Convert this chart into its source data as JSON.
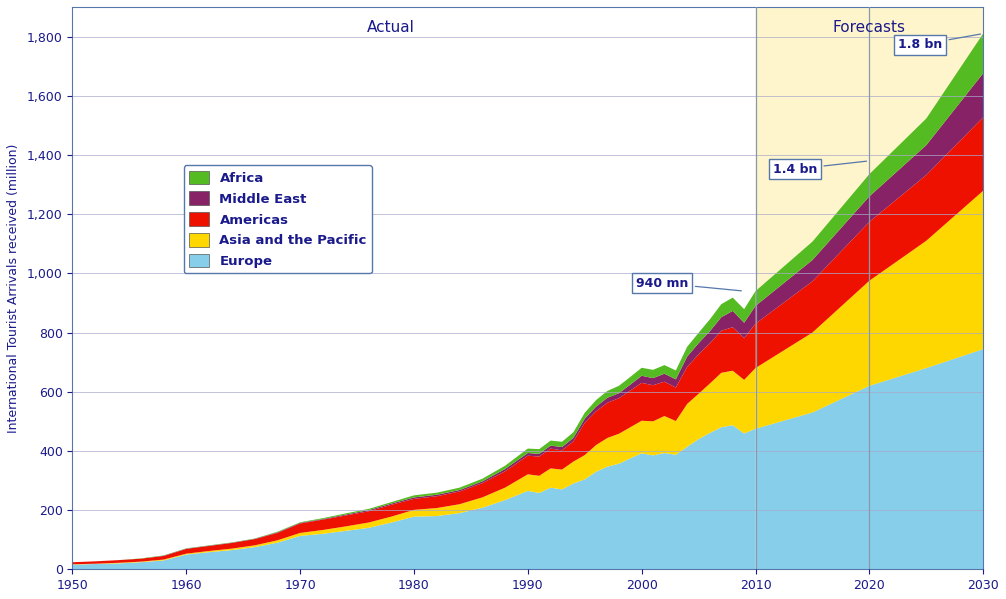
{
  "title_actual": "Actual",
  "title_forecasts": "Forecasts",
  "ylabel": "International Tourist Arrivals received (million)",
  "bg_forecast_color": "#FFF5CC",
  "colors": {
    "Europe": "#87CEEB",
    "Asia and the Pacific": "#FFD700",
    "Americas": "#EE1100",
    "Middle East": "#882266",
    "Africa": "#55BB22"
  },
  "annotation_940": "940 mn",
  "annotation_14": "1.4 bn",
  "annotation_18": "1.8 bn",
  "forecast_start": 2010,
  "vline_2020": 2020,
  "ylim": [
    0,
    1900
  ],
  "xlim": [
    1950,
    2030
  ],
  "yticks": [
    0,
    200,
    400,
    600,
    800,
    1000,
    1200,
    1400,
    1600,
    1800
  ],
  "xticks": [
    1950,
    1960,
    1970,
    1980,
    1990,
    2000,
    2010,
    2020,
    2030
  ],
  "actual_years": [
    1950,
    1952,
    1954,
    1956,
    1958,
    1960,
    1962,
    1964,
    1966,
    1968,
    1970,
    1972,
    1974,
    1976,
    1978,
    1980,
    1982,
    1984,
    1986,
    1988,
    1990,
    1991,
    1992,
    1993,
    1994,
    1995,
    1996,
    1997,
    1998,
    1999,
    2000,
    2001,
    2002,
    2003,
    2004,
    2005,
    2006,
    2007,
    2008,
    2009,
    2010
  ],
  "actual_europe": [
    16,
    18,
    20,
    24,
    30,
    50,
    58,
    65,
    75,
    90,
    113,
    120,
    130,
    140,
    158,
    178,
    180,
    190,
    208,
    234,
    265,
    258,
    276,
    270,
    290,
    304,
    330,
    347,
    357,
    375,
    392,
    385,
    393,
    387,
    414,
    440,
    461,
    480,
    487,
    459,
    475
  ],
  "actual_asia": [
    1,
    1,
    2,
    2,
    3,
    3,
    4,
    5,
    6,
    8,
    10,
    13,
    15,
    18,
    20,
    23,
    27,
    30,
    35,
    42,
    56,
    58,
    65,
    67,
    74,
    82,
    90,
    97,
    101,
    105,
    110,
    115,
    125,
    114,
    145,
    153,
    167,
    184,
    184,
    181,
    205
  ],
  "actual_americas": [
    7,
    8,
    9,
    10,
    12,
    16,
    17,
    19,
    21,
    25,
    32,
    35,
    37,
    38,
    40,
    37,
    40,
    43,
    48,
    55,
    63,
    65,
    67,
    65,
    68,
    109,
    114,
    119,
    120,
    124,
    128,
    122,
    116,
    113,
    125,
    133,
    136,
    142,
    147,
    141,
    150
  ],
  "actual_middleeast": [
    0,
    0,
    0,
    0,
    1,
    1,
    1,
    1,
    1,
    2,
    2,
    2,
    3,
    4,
    4,
    5,
    5,
    5,
    6,
    8,
    9,
    9,
    10,
    11,
    12,
    14,
    16,
    17,
    17,
    20,
    24,
    24,
    27,
    28,
    35,
    38,
    41,
    46,
    55,
    52,
    60
  ],
  "actual_africa": [
    0,
    0,
    0,
    1,
    1,
    1,
    1,
    1,
    1,
    2,
    2,
    3,
    4,
    4,
    5,
    7,
    7,
    8,
    9,
    11,
    15,
    16,
    17,
    18,
    19,
    20,
    22,
    23,
    25,
    26,
    27,
    28,
    29,
    30,
    33,
    35,
    40,
    44,
    45,
    46,
    50
  ],
  "forecast_years": [
    2010,
    2015,
    2020,
    2025,
    2030
  ],
  "forecast_europe": [
    475,
    530,
    620,
    680,
    744
  ],
  "forecast_asia": [
    205,
    270,
    355,
    430,
    535
  ],
  "forecast_americas": [
    150,
    173,
    199,
    222,
    248
  ],
  "forecast_middleeast": [
    60,
    72,
    86,
    101,
    149
  ],
  "forecast_africa": [
    50,
    62,
    75,
    90,
    134
  ]
}
